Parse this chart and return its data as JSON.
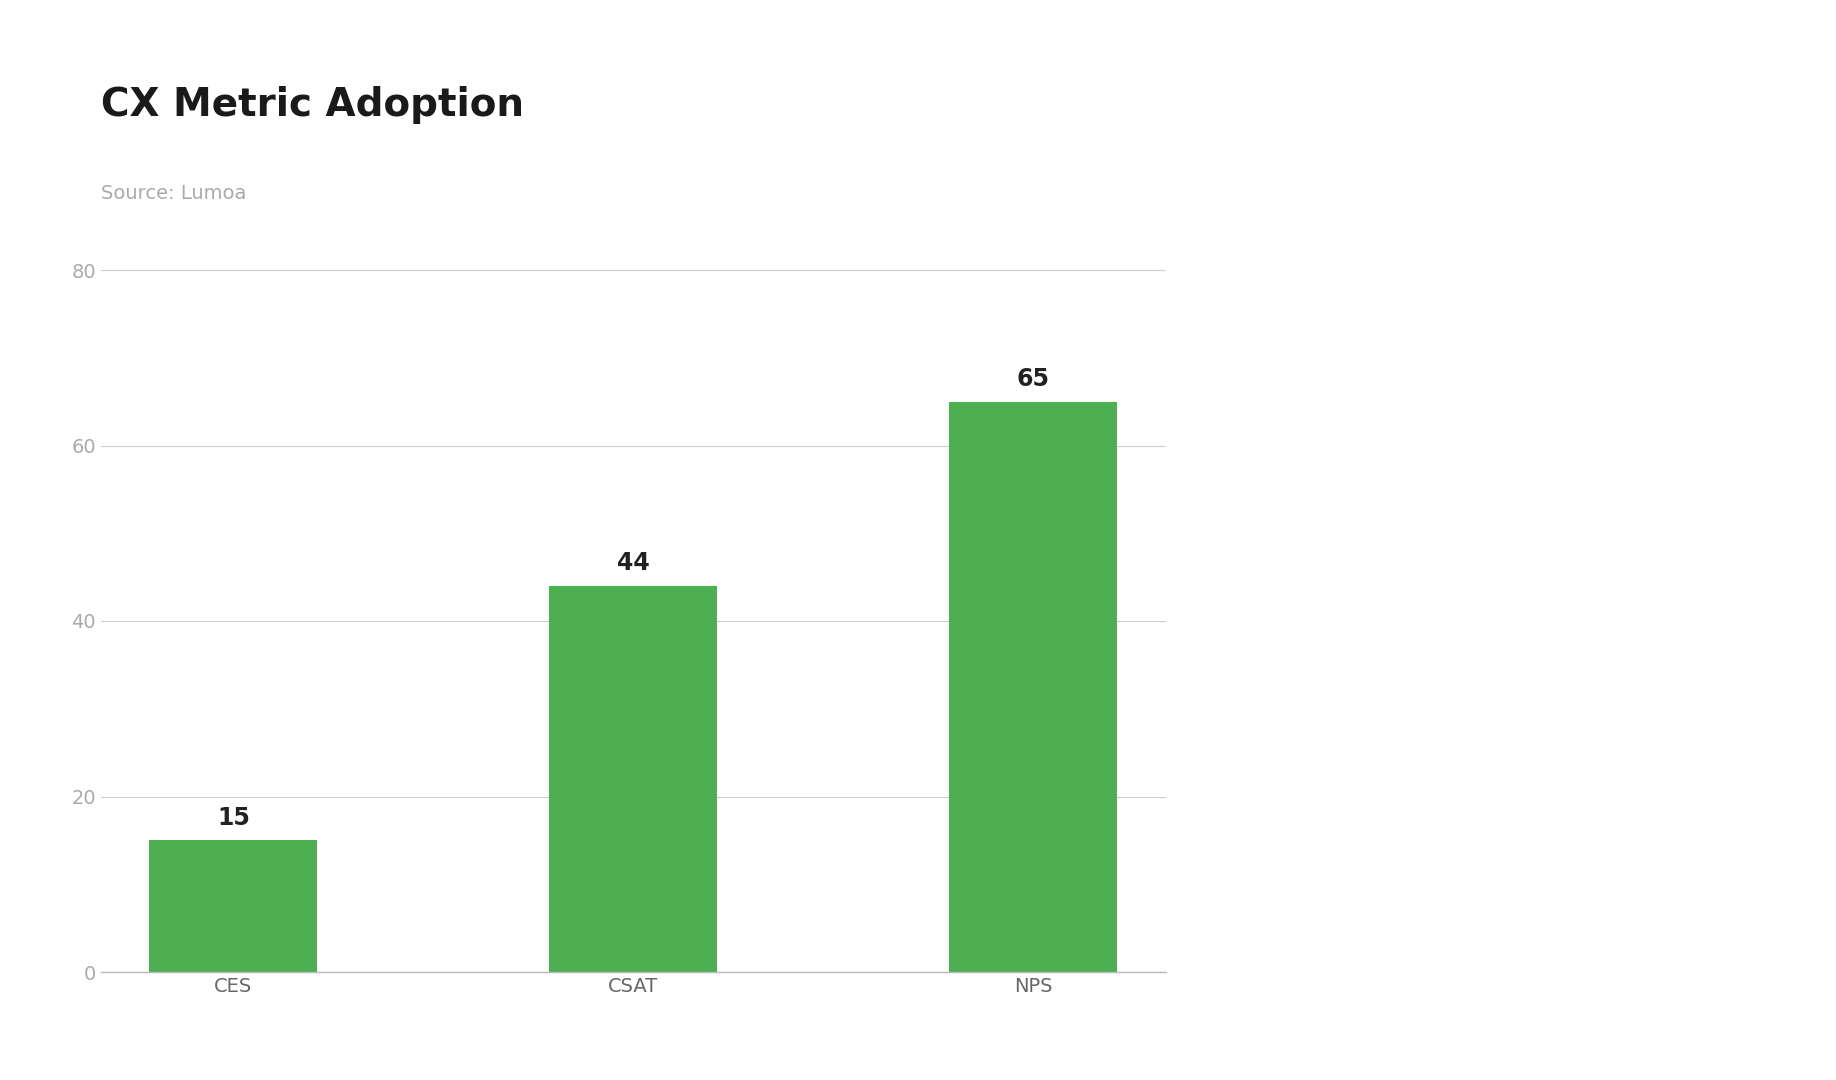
{
  "title": "CX Metric Adoption",
  "subtitle": "Source: Lumoa",
  "categories": [
    "CES",
    "CSAT",
    "NPS"
  ],
  "values": [
    15,
    44,
    65
  ],
  "bar_color": "#4caf50",
  "background_color": "#ffffff",
  "ylim": [
    0,
    80
  ],
  "yticks": [
    0,
    20,
    40,
    60,
    80
  ],
  "title_fontsize": 28,
  "subtitle_fontsize": 14,
  "subtitle_color": "#aaaaaa",
  "tick_label_fontsize": 14,
  "bar_label_fontsize": 17,
  "grid_color": "#cccccc",
  "xtick_color": "#666666",
  "ytick_color": "#aaaaaa"
}
